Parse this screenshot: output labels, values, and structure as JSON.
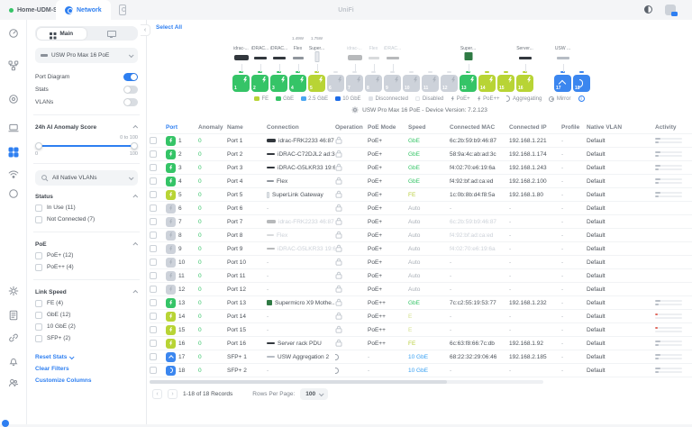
{
  "top_bar": {
    "site": "Home-UDM-SE",
    "app_tab": "Network",
    "brand": "UniFi"
  },
  "sidebar": {
    "tabs": {
      "main": "Main"
    },
    "device_selector": "USW Pro Max 16 PoE",
    "toggles": [
      {
        "label": "Port Diagram",
        "on": true
      },
      {
        "label": "Stats",
        "on": false
      },
      {
        "label": "VLANs",
        "on": false
      }
    ],
    "anomaly": {
      "title": "24h AI Anomaly Score",
      "range_hint": "0 to 100",
      "min_label": "0",
      "max_label": "100"
    },
    "vlan_filter": "All Native VLANs",
    "filter_groups": [
      {
        "title": "Status",
        "items": [
          "In Use (11)",
          "Not Connected (7)"
        ]
      },
      {
        "title": "PoE",
        "items": [
          "PoE+ (12)",
          "PoE++ (4)"
        ]
      },
      {
        "title": "Link Speed",
        "items": [
          "FE (4)",
          "GbE (12)",
          "10 GbE (2)",
          "SFP+ (2)"
        ]
      }
    ],
    "links": [
      "Reset Stats",
      "Clear Filters",
      "Customize Columns"
    ]
  },
  "main": {
    "select_all": "Select All",
    "device_title": "USW Pro Max 16 PoE - Device Version: 7.2.123",
    "diagram": {
      "devices": [
        {
          "port": 1,
          "label": "idrac-...",
          "style": "server",
          "faded": false
        },
        {
          "port": 2,
          "label": "iDRAC...",
          "style": "bar-dark",
          "faded": false
        },
        {
          "port": 3,
          "label": "iDRAC...",
          "style": "bar-dark",
          "faded": false
        },
        {
          "port": 4,
          "label": "Flex",
          "power": "1.49W",
          "style": "bar-thin",
          "faded": false
        },
        {
          "port": 5,
          "label": "Super...",
          "power": "1.75W",
          "style": "tower",
          "faded": false
        },
        {
          "port": 7,
          "label": "idrac-...",
          "style": "server",
          "faded": true
        },
        {
          "port": 8,
          "label": "Flex",
          "style": "bar-thin",
          "faded": true
        },
        {
          "port": 9,
          "label": "iDRAC...",
          "style": "bar-dark",
          "faded": true
        },
        {
          "port": 13,
          "label": "Super...",
          "style": "pcb",
          "faded": false
        },
        {
          "port": 16,
          "label": "Server...",
          "style": "pdu",
          "faded": false
        },
        {
          "port": 17,
          "label": "USW ...",
          "style": "switch",
          "faded": false
        }
      ],
      "ports": [
        {
          "n": "1",
          "state": "gbe",
          "glyph": "poe"
        },
        {
          "n": "2",
          "state": "gbe",
          "glyph": "poe"
        },
        {
          "n": "3",
          "state": "gbe",
          "glyph": "poe"
        },
        {
          "n": "4",
          "state": "gbe",
          "glyph": "poe"
        },
        {
          "n": "5",
          "state": "fe",
          "glyph": "poe"
        },
        {
          "n": "6",
          "state": "off",
          "glyph": "poe"
        },
        {
          "n": "7",
          "state": "off",
          "glyph": "poe"
        },
        {
          "n": "8",
          "state": "off",
          "glyph": "poe"
        },
        {
          "n": "9",
          "state": "off",
          "glyph": "poe"
        },
        {
          "n": "10",
          "state": "off",
          "glyph": "poe"
        },
        {
          "n": "11",
          "state": "off",
          "glyph": "poe"
        },
        {
          "n": "12",
          "state": "off",
          "glyph": "poe"
        },
        {
          "n": "13",
          "state": "gbe",
          "glyph": "poe"
        },
        {
          "n": "14",
          "state": "fe",
          "glyph": "poe"
        },
        {
          "n": "15",
          "state": "fe",
          "glyph": "poe"
        },
        {
          "n": "16",
          "state": "fe",
          "glyph": "poe"
        },
        {
          "n": "17",
          "state": "tengbe",
          "glyph": "caret"
        },
        {
          "n": "18",
          "state": "tengbe",
          "glyph": "agg"
        }
      ],
      "legend": [
        {
          "swatch": "#b8d435",
          "label": "FE"
        },
        {
          "swatch": "#35c467",
          "label": "GbE"
        },
        {
          "swatch": "#4aa6f2",
          "label": "2.5 GbE"
        },
        {
          "swatch": "#1d6ce8",
          "label": "10 GbE"
        },
        {
          "swatch": "#dfe2e7",
          "label": "Disconnected"
        },
        {
          "swatch": "#fafbfc",
          "outline": true,
          "label": "Disabled"
        },
        {
          "glyph": "poe",
          "label": "PoE+"
        },
        {
          "glyph": "poe",
          "label": "PoE++"
        },
        {
          "glyph": "agg",
          "label": "Aggregating"
        },
        {
          "glyph": "mirror",
          "label": "Mirror"
        }
      ]
    },
    "table": {
      "columns": [
        "Port",
        "Anomaly",
        "Name",
        "Connection",
        "Operation",
        "PoE Mode",
        "Speed",
        "Connected MAC",
        "Connected IP",
        "Profile",
        "Native VLAN",
        "Activity"
      ],
      "rows": [
        {
          "port": "1",
          "state": "gbe",
          "pglyph": "poe",
          "anomaly": "0",
          "name": "Port 1",
          "conn": "idrac-FRK2233 46:87",
          "conn_icon": "server",
          "conn_faded": false,
          "op": "lock",
          "poe": "PoE+",
          "speed": "GbE",
          "speed_c": "green",
          "mac": "6c:2b:59:b9:46:87",
          "mac_faded": false,
          "ip": "192.168.1.221",
          "profile": "-",
          "vlan": "Default",
          "act": "bars"
        },
        {
          "port": "2",
          "state": "gbe",
          "pglyph": "poe",
          "anomaly": "0",
          "name": "Port 2",
          "conn": "iDRAC-C72DJL2 ad:3c",
          "conn_icon": "bar-dark",
          "conn_faded": false,
          "op": "lock",
          "poe": "PoE+",
          "speed": "GbE",
          "speed_c": "green",
          "mac": "58:9a:4c:ab:ad:3c",
          "mac_faded": false,
          "ip": "192.168.1.174",
          "profile": "-",
          "vlan": "Default",
          "act": "bars"
        },
        {
          "port": "3",
          "state": "gbe",
          "pglyph": "poe",
          "anomaly": "0",
          "name": "Port 3",
          "conn": "iDRAC-G5LKR33 19:6a",
          "conn_icon": "bar-dark",
          "conn_faded": false,
          "op": "lock",
          "poe": "PoE+",
          "speed": "GbE",
          "speed_c": "green",
          "mac": "f4:02:70:e6:19:6a",
          "mac_faded": false,
          "ip": "192.168.1.243",
          "profile": "-",
          "vlan": "Default",
          "act": "bars"
        },
        {
          "port": "4",
          "state": "gbe",
          "pglyph": "poe",
          "anomaly": "0",
          "name": "Port 4",
          "conn": "Flex",
          "conn_icon": "bar-thin",
          "conn_faded": false,
          "op": "lock",
          "poe": "PoE+",
          "speed": "GbE",
          "speed_c": "green",
          "mac": "f4:92:bf:ad:ca:ed",
          "mac_faded": false,
          "ip": "192.168.2.100",
          "profile": "-",
          "vlan": "Default",
          "act": "bars"
        },
        {
          "port": "5",
          "state": "fe",
          "pglyph": "poe",
          "anomaly": "0",
          "name": "Port 5",
          "conn": "SuperLink Gateway",
          "conn_icon": "tower",
          "conn_faded": false,
          "op": "lock",
          "poe": "PoE+",
          "speed": "FE",
          "speed_c": "fecol",
          "mac": "1c:0b:8b:d4:f8:5a",
          "mac_faded": false,
          "ip": "192.168.1.80",
          "profile": "-",
          "vlan": "Default",
          "act": "bars"
        },
        {
          "port": "6",
          "state": "off",
          "pglyph": "poe",
          "anomaly": "0",
          "name": "Port 6",
          "conn": "-",
          "conn_icon": "",
          "conn_faded": false,
          "op": "lock",
          "poe": "PoE+",
          "speed": "Auto",
          "speed_c": "muted",
          "mac": "-",
          "mac_faded": false,
          "ip": "-",
          "profile": "-",
          "vlan": "Default",
          "act": "none"
        },
        {
          "port": "7",
          "state": "off",
          "pglyph": "poe",
          "anomaly": "0",
          "name": "Port 7",
          "conn": "idrac-FRK2233 46:87",
          "conn_icon": "server",
          "conn_faded": true,
          "op": "lock",
          "poe": "PoE+",
          "speed": "Auto",
          "speed_c": "muted",
          "mac": "6c:2b:59:b9:46:87",
          "mac_faded": true,
          "ip": "-",
          "profile": "-",
          "vlan": "Default",
          "act": "none"
        },
        {
          "port": "8",
          "state": "off",
          "pglyph": "poe",
          "anomaly": "0",
          "name": "Port 8",
          "conn": "Flex",
          "conn_icon": "bar-thin",
          "conn_faded": true,
          "op": "lock",
          "poe": "PoE+",
          "speed": "Auto",
          "speed_c": "muted",
          "mac": "f4:92:bf:ad:ca:ed",
          "mac_faded": true,
          "ip": "-",
          "profile": "-",
          "vlan": "Default",
          "act": "none"
        },
        {
          "port": "9",
          "state": "off",
          "pglyph": "poe",
          "anomaly": "0",
          "name": "Port 9",
          "conn": "iDRAC-G5LKR33 19:6a",
          "conn_icon": "bar-dark",
          "conn_faded": true,
          "op": "lock",
          "poe": "PoE+",
          "speed": "Auto",
          "speed_c": "muted",
          "mac": "f4:02:70:e6:19:6a",
          "mac_faded": true,
          "ip": "-",
          "profile": "-",
          "vlan": "Default",
          "act": "none"
        },
        {
          "port": "10",
          "state": "off",
          "pglyph": "poe",
          "anomaly": "0",
          "name": "Port 10",
          "conn": "-",
          "conn_icon": "",
          "conn_faded": false,
          "op": "lock",
          "poe": "PoE+",
          "speed": "Auto",
          "speed_c": "muted",
          "mac": "-",
          "mac_faded": false,
          "ip": "-",
          "profile": "-",
          "vlan": "Default",
          "act": "none"
        },
        {
          "port": "11",
          "state": "off",
          "pglyph": "poe",
          "anomaly": "0",
          "name": "Port 11",
          "conn": "-",
          "conn_icon": "",
          "conn_faded": false,
          "op": "lock",
          "poe": "PoE+",
          "speed": "Auto",
          "speed_c": "muted",
          "mac": "-",
          "mac_faded": false,
          "ip": "-",
          "profile": "-",
          "vlan": "Default",
          "act": "none"
        },
        {
          "port": "12",
          "state": "off",
          "pglyph": "poe",
          "anomaly": "0",
          "name": "Port 12",
          "conn": "-",
          "conn_icon": "",
          "conn_faded": false,
          "op": "lock",
          "poe": "PoE+",
          "speed": "Auto",
          "speed_c": "muted",
          "mac": "-",
          "mac_faded": false,
          "ip": "-",
          "profile": "-",
          "vlan": "Default",
          "act": "none"
        },
        {
          "port": "13",
          "state": "gbe",
          "pglyph": "poe",
          "anomaly": "0",
          "name": "Port 13",
          "conn": "Supermicro X9 Mothe...",
          "conn_icon": "pcb",
          "conn_faded": false,
          "op": "lock",
          "poe": "PoE++",
          "speed": "GbE",
          "speed_c": "green",
          "mac": "7c:c2:55:19:53:77",
          "mac_faded": false,
          "ip": "192.168.1.232",
          "profile": "-",
          "vlan": "Default",
          "act": "bars"
        },
        {
          "port": "14",
          "state": "fe",
          "pglyph": "poe",
          "anomaly": "0",
          "name": "Port 14",
          "conn": "-",
          "conn_icon": "",
          "conn_faded": false,
          "op": "lock",
          "poe": "PoE++",
          "speed": "E",
          "speed_c": "fe-light",
          "mac": "-",
          "mac_faded": false,
          "ip": "-",
          "profile": "-",
          "vlan": "Default",
          "act": "red"
        },
        {
          "port": "15",
          "state": "fe",
          "pglyph": "poe",
          "anomaly": "0",
          "name": "Port 15",
          "conn": "-",
          "conn_icon": "",
          "conn_faded": false,
          "op": "lock",
          "poe": "PoE++",
          "speed": "E",
          "speed_c": "fe-light",
          "mac": "-",
          "mac_faded": false,
          "ip": "-",
          "profile": "-",
          "vlan": "Default",
          "act": "red"
        },
        {
          "port": "16",
          "state": "fe",
          "pglyph": "poe",
          "anomaly": "0",
          "name": "Port 16",
          "conn": "Server rack PDU",
          "conn_icon": "pdu",
          "conn_faded": false,
          "op": "lock",
          "poe": "PoE++",
          "speed": "FE",
          "speed_c": "fecol",
          "mac": "6c:63:f8:66:7c:db",
          "mac_faded": false,
          "ip": "192.168.1.92",
          "profile": "-",
          "vlan": "Default",
          "act": "bars"
        },
        {
          "port": "17",
          "state": "tengbe",
          "pglyph": "caret",
          "anomaly": "0",
          "name": "SFP+ 1",
          "conn": "USW Aggregation 2",
          "conn_icon": "switch",
          "conn_faded": false,
          "op": "agg",
          "poe": "-",
          "speed": "10 GbE",
          "speed_c": "bluecol",
          "mac": "68:22:32:29:06:46",
          "mac_faded": false,
          "ip": "192.168.2.185",
          "profile": "-",
          "vlan": "Default",
          "act": "bars"
        },
        {
          "port": "18",
          "state": "tengbe",
          "pglyph": "agg",
          "anomaly": "0",
          "name": "SFP+ 2",
          "conn": "-",
          "conn_icon": "",
          "conn_faded": false,
          "op": "agg",
          "poe": "-",
          "speed": "10 GbE",
          "speed_c": "bluecol",
          "mac": "-",
          "mac_faded": false,
          "ip": "-",
          "profile": "-",
          "vlan": "Default",
          "act": "bars"
        }
      ]
    },
    "pagination": {
      "records": "1-18 of 18 Records",
      "rows_per_page_label": "Rows Per Page:",
      "rows_per_page": "100"
    }
  }
}
